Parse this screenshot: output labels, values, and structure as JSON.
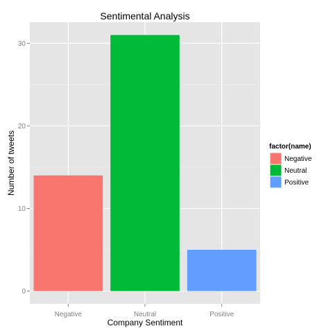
{
  "chart_data": {
    "type": "bar",
    "title": "Sentimental Analysis",
    "xlabel": "Company Sentiment",
    "ylabel": "Number of tweets",
    "categories": [
      "Negative",
      "Neutral",
      "Positive"
    ],
    "values": [
      14,
      31,
      5
    ],
    "colors": [
      "#f8766d",
      "#00ba38",
      "#619cff"
    ],
    "ylim": [
      -1.55,
      32.55
    ],
    "yticks": [
      0,
      10,
      20,
      30
    ],
    "ytick_labels": [
      "0",
      "10",
      "20",
      "30"
    ],
    "grid": true,
    "panel_background": "#e5e5e5",
    "grid_color": "#ffffff",
    "legend": {
      "title": "factor(name)",
      "placement": "right",
      "entries": [
        "Negative",
        "Neutral",
        "Positive"
      ]
    }
  }
}
